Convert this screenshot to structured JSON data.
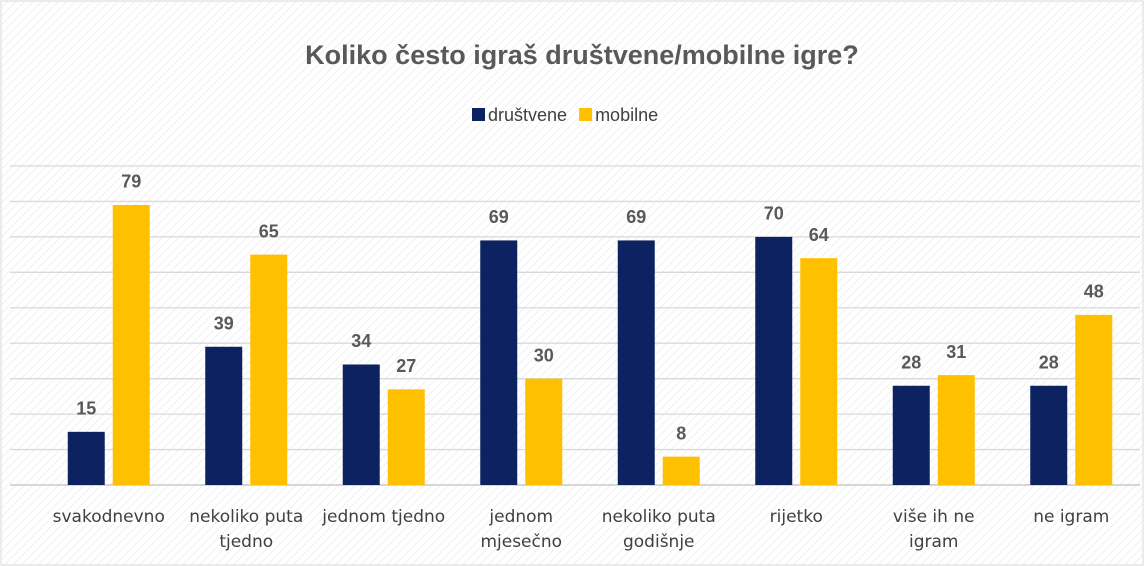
{
  "chart_data": {
    "type": "bar",
    "title": "Koliko često igraš društvene/mobilne igre?",
    "categories": [
      "svakodnevno",
      "nekoliko puta tjedno",
      "jednom tjedno",
      "jednom mjesečno",
      "nekoliko puta godišnje",
      "rijetko",
      "više ih ne igram",
      "ne igram"
    ],
    "series": [
      {
        "name": "društvene",
        "color": "#0d2260",
        "values": [
          15,
          39,
          34,
          69,
          69,
          70,
          28,
          28
        ]
      },
      {
        "name": "mobilne",
        "color": "#ffc000",
        "values": [
          79,
          65,
          27,
          30,
          8,
          64,
          31,
          48
        ]
      }
    ],
    "ylim": [
      0,
      90
    ],
    "yticks": [
      0,
      10,
      20,
      30,
      40,
      50,
      60,
      70,
      80,
      90
    ],
    "grid": true,
    "legend": "top"
  }
}
